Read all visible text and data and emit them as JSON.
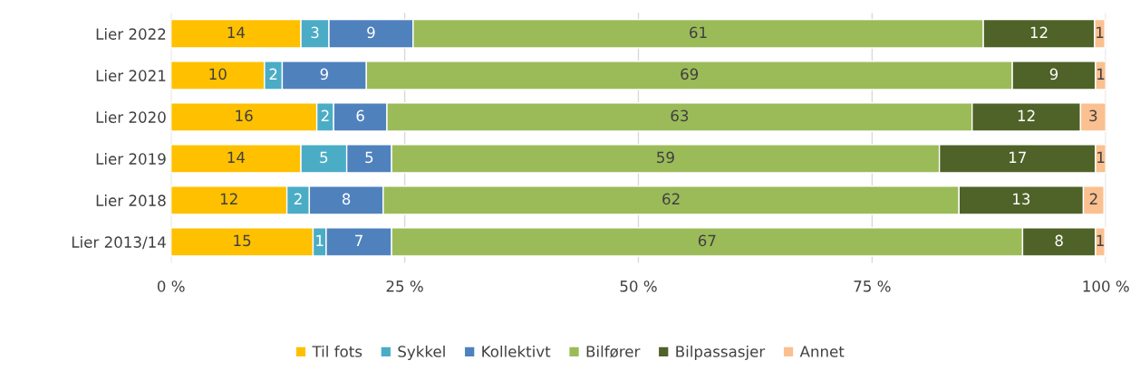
{
  "chart_data": {
    "type": "bar",
    "orientation": "horizontal",
    "stacked": true,
    "categories": [
      "Lier 2022",
      "Lier 2021",
      "Lier 2020",
      "Lier 2019",
      "Lier 2018",
      "Lier 2013/14"
    ],
    "series": [
      {
        "name": "Til fots",
        "color": "#ffc000",
        "values": [
          13.9,
          10.0,
          15.6,
          13.9,
          12.4,
          15.2
        ],
        "value_labels": [
          "14",
          "10",
          "16",
          "14",
          "12",
          "15"
        ]
      },
      {
        "name": "Sykkel",
        "color": "#4bacc6",
        "values": [
          3.0,
          1.9,
          1.8,
          4.9,
          2.4,
          1.4
        ],
        "value_labels": [
          "3",
          "2",
          "2",
          "5",
          "2",
          "1"
        ]
      },
      {
        "name": "Kollektivt",
        "color": "#4f81bd",
        "values": [
          9.0,
          9.0,
          5.7,
          4.8,
          7.9,
          7.0
        ],
        "value_labels": [
          "9",
          "9",
          "6",
          "5",
          "8",
          "7"
        ]
      },
      {
        "name": "Bilfører",
        "color": "#9bbb59",
        "values": [
          61.0,
          69.1,
          62.6,
          58.6,
          61.6,
          67.5
        ],
        "value_labels": [
          "61",
          "69",
          "63",
          "59",
          "62",
          "67"
        ]
      },
      {
        "name": "Bilpassasjer",
        "color": "#4f6228",
        "values": [
          11.9,
          8.9,
          11.6,
          16.7,
          13.3,
          7.8
        ],
        "value_labels": [
          "12",
          "9",
          "12",
          "17",
          "13",
          "8"
        ]
      },
      {
        "name": "Annet",
        "color": "#fac090",
        "values": [
          1.1,
          1.1,
          2.7,
          1.1,
          2.2,
          1.0
        ],
        "value_labels": [
          "1",
          "1",
          "3",
          "1",
          "2",
          "1"
        ]
      }
    ],
    "xlim": [
      0,
      100
    ],
    "xticks": [
      {
        "value": 0,
        "label": "0 %"
      },
      {
        "value": 25,
        "label": "25 %"
      },
      {
        "value": 50,
        "label": "50 %"
      },
      {
        "value": 75,
        "label": "75 %"
      },
      {
        "value": 100,
        "label": "100 %"
      }
    ],
    "grid": "x",
    "legend": "bottom"
  }
}
